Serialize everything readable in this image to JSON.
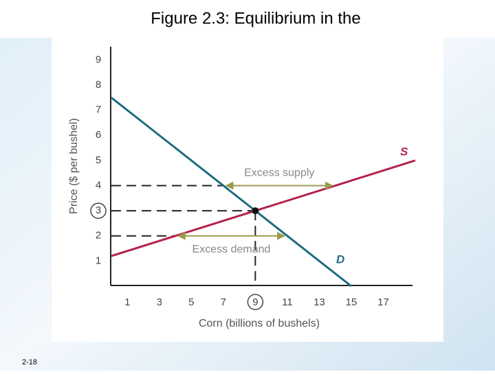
{
  "slide": {
    "title": "Figure 2.3: Equilibrium in the",
    "page": "2-18"
  },
  "chart_data": {
    "type": "line",
    "xlabel": "Corn (billions of bushels)",
    "ylabel": "Price ($ per bushel)",
    "xlim": [
      0,
      19
    ],
    "ylim": [
      0,
      9.5
    ],
    "xticks": [
      1,
      3,
      5,
      7,
      9,
      11,
      13,
      15,
      17
    ],
    "yticks": [
      1,
      2,
      3,
      4,
      5,
      6,
      7,
      8,
      9
    ],
    "series": [
      {
        "name": "S",
        "color": "#b3224a",
        "x": [
          0,
          19
        ],
        "values": [
          1.2,
          5
        ]
      },
      {
        "name": "D",
        "color": "#1e6b80",
        "x": [
          0,
          15
        ],
        "values": [
          7.5,
          0
        ]
      }
    ],
    "equilibrium": {
      "x": 9,
      "y": 3
    },
    "annotations": [
      {
        "text": "Excess supply",
        "price": 4,
        "from": 7,
        "to": 14
      },
      {
        "text": "Excess demand",
        "price": 2,
        "from": 4,
        "to": 11
      }
    ],
    "arrow_color": "#9c9a4c"
  }
}
